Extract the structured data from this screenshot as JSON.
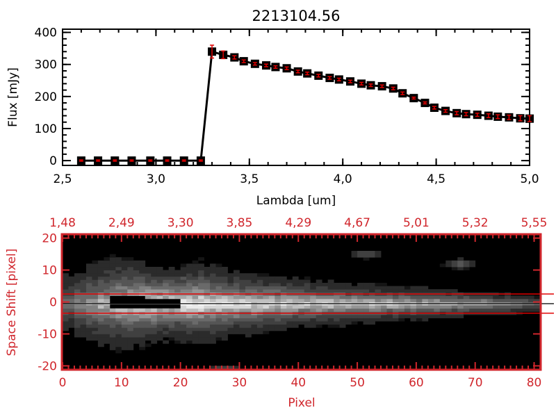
{
  "colors": {
    "axis_bottom": "#d0262c",
    "marker": "#000000",
    "errorbar": "#e00000",
    "trace_lines": "#e00000"
  },
  "chart_data": [
    {
      "type": "line",
      "title": "2213104.56",
      "xlabel": "Lambda [um]",
      "ylabel": "Flux [mJy]",
      "xlim": [
        2.5,
        5.0
      ],
      "ylim": [
        -15,
        410
      ],
      "xticks": [
        "2.5",
        "3.0",
        "3.5",
        "4.0",
        "4.5",
        "5.0"
      ],
      "yticks": [
        "0",
        "100",
        "200",
        "300",
        "400"
      ],
      "grid": false,
      "series": [
        {
          "x": [
            2.6,
            2.69,
            2.78,
            2.87,
            2.97,
            3.06,
            3.15,
            3.24,
            3.3,
            3.36,
            3.42,
            3.47,
            3.53,
            3.59,
            3.64,
            3.7,
            3.76,
            3.81,
            3.87,
            3.93,
            3.98,
            4.04,
            4.1,
            4.15,
            4.21,
            4.27,
            4.32,
            4.38,
            4.44,
            4.49,
            4.55,
            4.61,
            4.66,
            4.72,
            4.78,
            4.83,
            4.89,
            4.95,
            5.0
          ],
          "y": [
            0,
            0,
            0,
            0,
            0,
            0,
            0,
            0,
            340,
            330,
            322,
            310,
            302,
            297,
            292,
            288,
            278,
            272,
            265,
            258,
            253,
            247,
            240,
            235,
            232,
            225,
            210,
            195,
            180,
            165,
            155,
            148,
            145,
            143,
            140,
            137,
            135,
            132,
            131
          ],
          "yerr": [
            2,
            2,
            2,
            2,
            2,
            2,
            2,
            2,
            20,
            12,
            5,
            4,
            4,
            4,
            4,
            4,
            4,
            4,
            4,
            4,
            4,
            4,
            4,
            4,
            4,
            4,
            4,
            3,
            3,
            4,
            4,
            5,
            5,
            5,
            6,
            6,
            7,
            8,
            9
          ]
        }
      ]
    },
    {
      "type": "heatmap",
      "xlabel": "Pixel",
      "ylabel": "Space Shift [pixel]",
      "xlim": [
        0,
        81
      ],
      "ylim": [
        -21,
        21
      ],
      "xticks": [
        "0",
        "10",
        "20",
        "30",
        "40",
        "50",
        "60",
        "70",
        "80"
      ],
      "yticks": [
        "-20",
        "-10",
        "0",
        "10",
        "20"
      ],
      "top_xticks": [
        "1.48",
        "2.49",
        "3.30",
        "3.85",
        "4.29",
        "4.67",
        "5.01",
        "5.32",
        "5.55"
      ],
      "colormap": "grayscale",
      "trace_center": -0.5,
      "extraction_limits": [
        -3.5,
        2.5
      ],
      "column_peak": [
        0.45,
        0.55,
        0.65,
        0.75,
        0.85,
        0.95,
        1.0,
        1.0,
        1.0,
        1.0,
        1.0,
        0.98,
        0.96,
        0.95,
        0.94,
        0.93,
        0.92,
        0.91,
        0.9,
        0.89,
        0.88,
        0.87,
        0.86,
        0.85,
        0.84,
        0.83,
        0.82,
        0.8,
        0.78,
        0.76,
        0.74,
        0.72,
        0.7,
        0.68,
        0.66,
        0.64,
        0.6,
        0.55,
        0.5,
        0.45,
        0.4
      ],
      "column_width": [
        7,
        7.5,
        8,
        8,
        8,
        7.5,
        7,
        6.5,
        6,
        6,
        6.5,
        7,
        6.5,
        6,
        5.5,
        5.2,
        5,
        4.8,
        4.6,
        4.4,
        4.2,
        4,
        3.9,
        3.8,
        3.6,
        3.5,
        3.4,
        3.3,
        3.2,
        3.1,
        3,
        2.9,
        2.8,
        2.7,
        2.6,
        2.5,
        2.4,
        2.3,
        2.2,
        2.1,
        2
      ],
      "saturated_region": {
        "x": [
          8,
          19
        ],
        "y": [
          -2,
          2
        ]
      },
      "sources": [
        {
          "x": 51,
          "y": 15,
          "level": 0.3
        },
        {
          "x": 67,
          "y": 12,
          "level": 0.35
        },
        {
          "x": 27,
          "y": -21,
          "level": 0.25
        }
      ]
    }
  ]
}
